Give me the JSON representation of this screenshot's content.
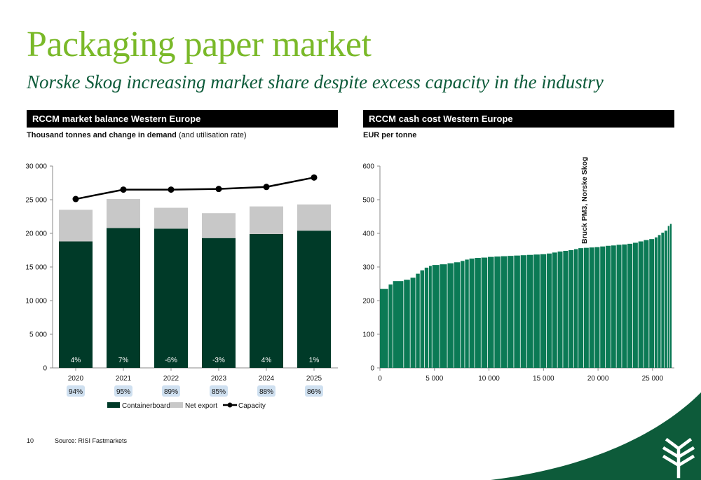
{
  "slide": {
    "title": "Packaging paper market",
    "subtitle": "Norske Skog increasing market share despite excess capacity in the industry",
    "page_number": "10",
    "source": "Source: RISI Fastmarkets"
  },
  "left_panel": {
    "header": "RCCM market balance Western Europe",
    "subheader_bold": "Thousand tonnes and change in demand",
    "subheader_normal": " (and utilisation rate)"
  },
  "right_panel": {
    "header": "RCCM cash cost Western Europe",
    "subheader_bold": "EUR per tonne"
  },
  "colors": {
    "containerboard": "#003a28",
    "net_export": "#c8c8c8",
    "capacity": "#000000",
    "cost_bars": "#0b7a55",
    "badge": "#cfe0f0",
    "brand_green": "#7ab929",
    "brand_dark": "#0d5b3a"
  },
  "chart_data": [
    {
      "type": "bar",
      "stacked": true,
      "categories": [
        "2020",
        "2021",
        "2022",
        "2023",
        "2024",
        "2025"
      ],
      "series": [
        {
          "name": "Containerboard",
          "values": [
            18800,
            20800,
            20700,
            19300,
            19900,
            20400
          ]
        },
        {
          "name": "Net export",
          "values": [
            4700,
            4300,
            3100,
            3700,
            4100,
            3900
          ]
        }
      ],
      "line_series": {
        "name": "Capacity",
        "values": [
          25100,
          26500,
          26500,
          26600,
          26900,
          28300
        ]
      },
      "bar_labels": [
        "4%",
        "7%",
        "-6%",
        "-3%",
        "4%",
        "1%"
      ],
      "utilisation_labels": [
        "94%",
        "95%",
        "89%",
        "85%",
        "88%",
        "86%"
      ],
      "ylim": [
        0,
        30000
      ],
      "yticks": [
        0,
        5000,
        10000,
        15000,
        20000,
        25000,
        30000
      ],
      "ytick_labels": [
        "0",
        "5 000",
        "10 000",
        "15 000",
        "20 000",
        "25 000",
        "30 000"
      ],
      "legend_position": "bottom",
      "grid": false
    },
    {
      "type": "bar",
      "variable_width": true,
      "xlim": [
        0,
        27000
      ],
      "ylim": [
        0,
        600
      ],
      "xticks": [
        0,
        5000,
        10000,
        15000,
        20000,
        25000
      ],
      "xtick_labels": [
        "0",
        "5 000",
        "10 000",
        "15 000",
        "20 000",
        "25 000"
      ],
      "yticks": [
        0,
        100,
        200,
        300,
        400,
        500,
        600
      ],
      "ytick_labels": [
        "0",
        "100",
        "200",
        "300",
        "400",
        "500",
        "600"
      ],
      "annotation": {
        "text": "Bruck PM3, Norske Skog",
        "x": 18500
      },
      "cost_curve": [
        [
          0,
          235
        ],
        [
          800,
          248
        ],
        [
          1200,
          258
        ],
        [
          2200,
          262
        ],
        [
          2800,
          268
        ],
        [
          3300,
          280
        ],
        [
          3700,
          290
        ],
        [
          4100,
          298
        ],
        [
          4500,
          303
        ],
        [
          4800,
          306
        ],
        [
          5500,
          308
        ],
        [
          6200,
          311
        ],
        [
          6800,
          314
        ],
        [
          7400,
          318
        ],
        [
          7800,
          322
        ],
        [
          8200,
          325
        ],
        [
          8700,
          327
        ],
        [
          9300,
          328
        ],
        [
          9900,
          330
        ],
        [
          10500,
          331
        ],
        [
          11100,
          332
        ],
        [
          11700,
          333
        ],
        [
          12300,
          334
        ],
        [
          12900,
          335
        ],
        [
          13500,
          336
        ],
        [
          14100,
          337
        ],
        [
          14700,
          338
        ],
        [
          15300,
          340
        ],
        [
          15800,
          343
        ],
        [
          16300,
          346
        ],
        [
          16800,
          348
        ],
        [
          17300,
          350
        ],
        [
          17800,
          353
        ],
        [
          18200,
          356
        ],
        [
          18700,
          357
        ],
        [
          19200,
          358
        ],
        [
          19700,
          359
        ],
        [
          20200,
          361
        ],
        [
          20700,
          363
        ],
        [
          21200,
          364
        ],
        [
          21700,
          366
        ],
        [
          22200,
          367
        ],
        [
          22700,
          369
        ],
        [
          23200,
          372
        ],
        [
          23700,
          376
        ],
        [
          24200,
          380
        ],
        [
          24700,
          383
        ],
        [
          25200,
          388
        ],
        [
          25500,
          395
        ],
        [
          25800,
          402
        ],
        [
          26100,
          408
        ],
        [
          26400,
          422
        ],
        [
          26600,
          428
        ]
      ],
      "x_end": 26800
    }
  ],
  "legend": [
    "Containerboard",
    "Net export",
    "Capacity"
  ]
}
